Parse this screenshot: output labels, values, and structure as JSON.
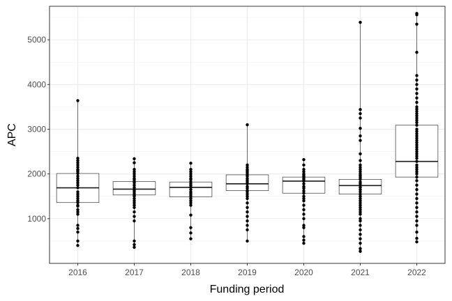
{
  "chart_data": {
    "type": "box",
    "title": "",
    "xlabel": "Funding period",
    "ylabel": "APC",
    "categories": [
      "2016",
      "2017",
      "2018",
      "2019",
      "2020",
      "2021",
      "2022"
    ],
    "ylim": [
      0,
      5750
    ],
    "yticks": [
      1000,
      2000,
      3000,
      4000,
      5000
    ],
    "grid": true,
    "legend": "none",
    "boxes": [
      {
        "category": "2016",
        "q1": 1360,
        "median": 1690,
        "q3": 2010,
        "min": 400,
        "max": 3640,
        "points": [
          400,
          500,
          700,
          780,
          850,
          1100,
          1150,
          1200,
          1280,
          1300,
          1360,
          1400,
          1450,
          1500,
          1550,
          1600,
          1690,
          1750,
          1800,
          1850,
          1900,
          1950,
          2010,
          2050,
          2080,
          2100,
          2150,
          2200,
          2250,
          2300,
          2350,
          3640
        ]
      },
      {
        "category": "2017",
        "q1": 1530,
        "median": 1660,
        "q3": 1830,
        "min": 360,
        "max": 2340,
        "points": [
          360,
          420,
          500,
          950,
          1050,
          1150,
          1250,
          1300,
          1350,
          1400,
          1450,
          1500,
          1530,
          1560,
          1600,
          1630,
          1660,
          1700,
          1750,
          1800,
          1830,
          1870,
          1900,
          1950,
          2000,
          2050,
          2100,
          2250,
          2340
        ]
      },
      {
        "category": "2018",
        "q1": 1490,
        "median": 1700,
        "q3": 1820,
        "min": 550,
        "max": 2240,
        "points": [
          550,
          680,
          800,
          1080,
          1300,
          1350,
          1400,
          1450,
          1490,
          1530,
          1570,
          1600,
          1650,
          1700,
          1740,
          1780,
          1820,
          1870,
          1900,
          1950,
          2000,
          2050,
          2100,
          2240
        ]
      },
      {
        "category": "2019",
        "q1": 1630,
        "median": 1780,
        "q3": 1980,
        "min": 500,
        "max": 3100,
        "points": [
          500,
          750,
          850,
          950,
          1050,
          1150,
          1250,
          1350,
          1450,
          1500,
          1550,
          1600,
          1630,
          1680,
          1720,
          1780,
          1820,
          1860,
          1900,
          1950,
          1980,
          2020,
          2050,
          2080,
          2100,
          2150,
          2200,
          3100
        ]
      },
      {
        "category": "2020",
        "q1": 1570,
        "median": 1840,
        "q3": 1930,
        "min": 450,
        "max": 2320,
        "points": [
          450,
          520,
          600,
          800,
          850,
          1000,
          1100,
          1200,
          1300,
          1400,
          1450,
          1500,
          1570,
          1620,
          1680,
          1720,
          1780,
          1840,
          1870,
          1900,
          1930,
          1950,
          1980,
          2000,
          2050,
          2100,
          2200,
          2320
        ]
      },
      {
        "category": "2021",
        "q1": 1550,
        "median": 1740,
        "q3": 1880,
        "min": 270,
        "max": 5390,
        "points": [
          270,
          330,
          450,
          550,
          650,
          750,
          850,
          950,
          1000,
          1100,
          1150,
          1200,
          1250,
          1300,
          1350,
          1400,
          1450,
          1500,
          1550,
          1600,
          1650,
          1700,
          1740,
          1780,
          1820,
          1880,
          1920,
          1960,
          2000,
          2050,
          2100,
          2150,
          2200,
          2300,
          2450,
          2750,
          2850,
          3020,
          3250,
          3350,
          3440,
          5390
        ]
      },
      {
        "category": "2022",
        "q1": 1930,
        "median": 2280,
        "q3": 3090,
        "min": 480,
        "max": 5590,
        "points": [
          480,
          560,
          700,
          850,
          950,
          1050,
          1150,
          1250,
          1350,
          1450,
          1550,
          1650,
          1750,
          1850,
          1930,
          2000,
          2050,
          2100,
          2150,
          2200,
          2280,
          2350,
          2400,
          2450,
          2500,
          2550,
          2600,
          2650,
          2700,
          2750,
          2800,
          2850,
          2900,
          2950,
          3000,
          3090,
          3150,
          3200,
          3250,
          3300,
          3350,
          3400,
          3450,
          3500,
          3600,
          3700,
          3800,
          3900,
          4000,
          4100,
          4200,
          4720,
          5350,
          5560,
          5590
        ]
      }
    ]
  }
}
